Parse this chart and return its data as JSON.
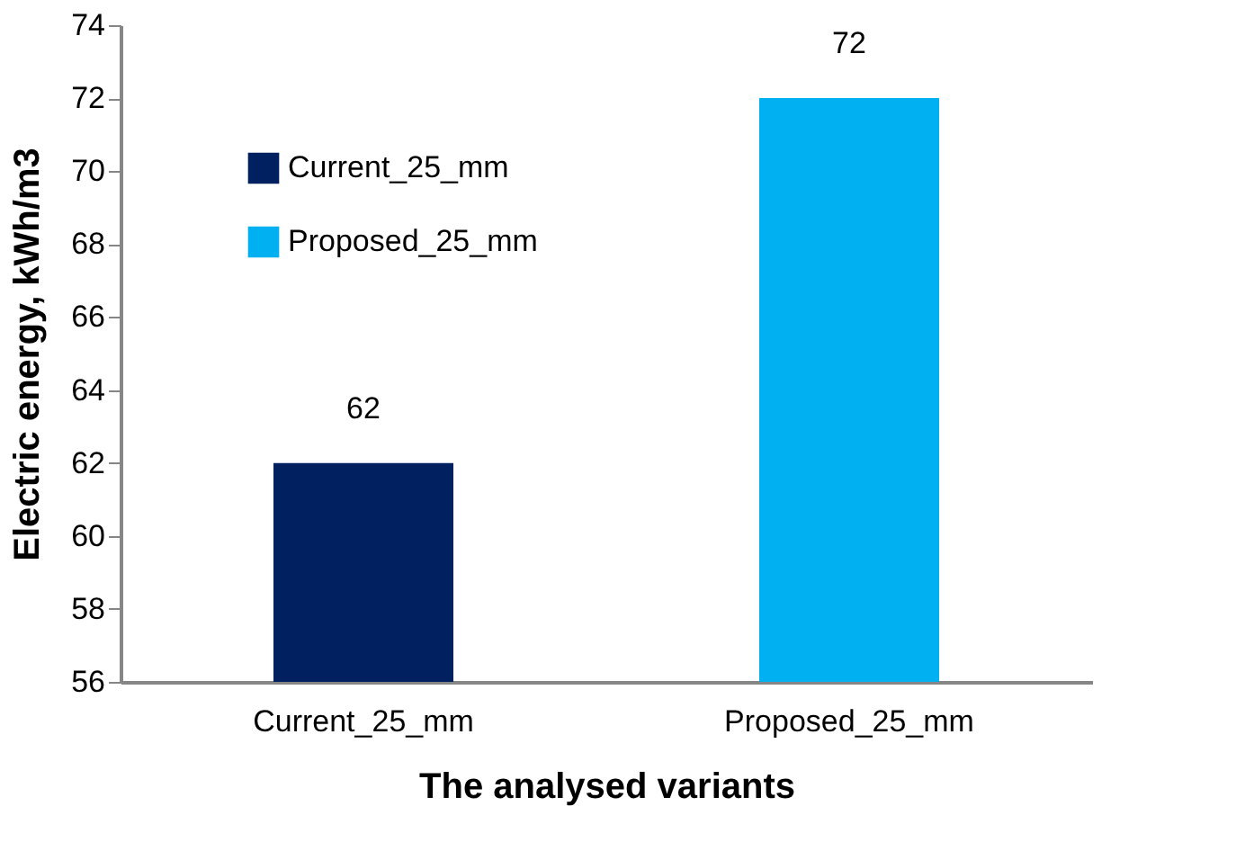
{
  "chart_data": {
    "type": "bar",
    "xlabel": "The analysed variants",
    "ylabel": "Electric energy, kWh/m3",
    "categories": [
      "Current_25_mm",
      "Proposed_25_mm"
    ],
    "series": [
      {
        "name": "Current_25_mm",
        "color": "#002060",
        "values": [
          62,
          null
        ]
      },
      {
        "name": "Proposed_25_mm",
        "color": "#00b0f0",
        "values": [
          null,
          72
        ]
      }
    ],
    "ylim": [
      56,
      74
    ],
    "yticks": [
      56,
      58,
      60,
      62,
      64,
      66,
      68,
      70,
      72,
      74
    ],
    "grid": false,
    "legend": "top left",
    "data_labels": true
  }
}
